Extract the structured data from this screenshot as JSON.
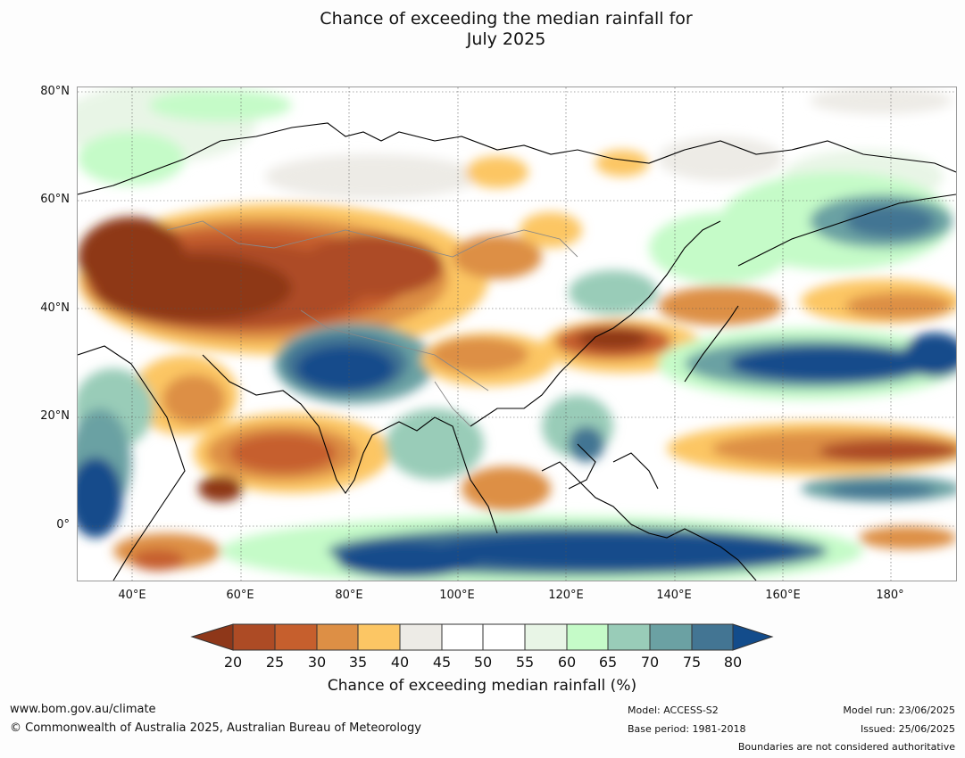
{
  "title": [
    "Chance of exceeding the median rainfall for",
    "July 2025"
  ],
  "map": {
    "lat_labels": [
      "80°N",
      "60°N",
      "40°N",
      "20°N",
      "0°"
    ],
    "lon_labels": [
      "40°E",
      "60°E",
      "80°E",
      "100°E",
      "120°E",
      "140°E",
      "160°E",
      "180°"
    ],
    "colors": {
      "lt20": "#8e3719",
      "c20_25": "#ad4b25",
      "c25_30": "#c65f2d",
      "c30_35": "#dd8f45",
      "c35_40": "#fcc664",
      "c40_45": "#edebe6",
      "c45_50": "#ffffff",
      "c50_55": "#ffffff",
      "c55_60": "#e8f5e6",
      "c60_65": "#c5fbc8",
      "c65_70": "#99ccb8",
      "c70_75": "#6ba1a3",
      "c75_80": "#437593",
      "gt80": "#134c8b",
      "coast": "#000000",
      "border": "#888888"
    }
  },
  "colorbar": {
    "ticks": [
      "20",
      "25",
      "30",
      "35",
      "40",
      "45",
      "50",
      "55",
      "60",
      "65",
      "70",
      "75",
      "80"
    ],
    "label": "Chance of exceeding median rainfall (%)"
  },
  "footer": {
    "website": "www.bom.gov.au/climate",
    "copyright": "© Commonwealth of Australia 2025, Australian Bureau of Meteorology",
    "model": "Model: ACCESS-S2",
    "base_period": "Base period: 1981-2018",
    "model_run": "Model run: 23/06/2025",
    "issued": "Issued: 25/06/2025",
    "disclaimer": "Boundaries are not considered authoritative"
  }
}
